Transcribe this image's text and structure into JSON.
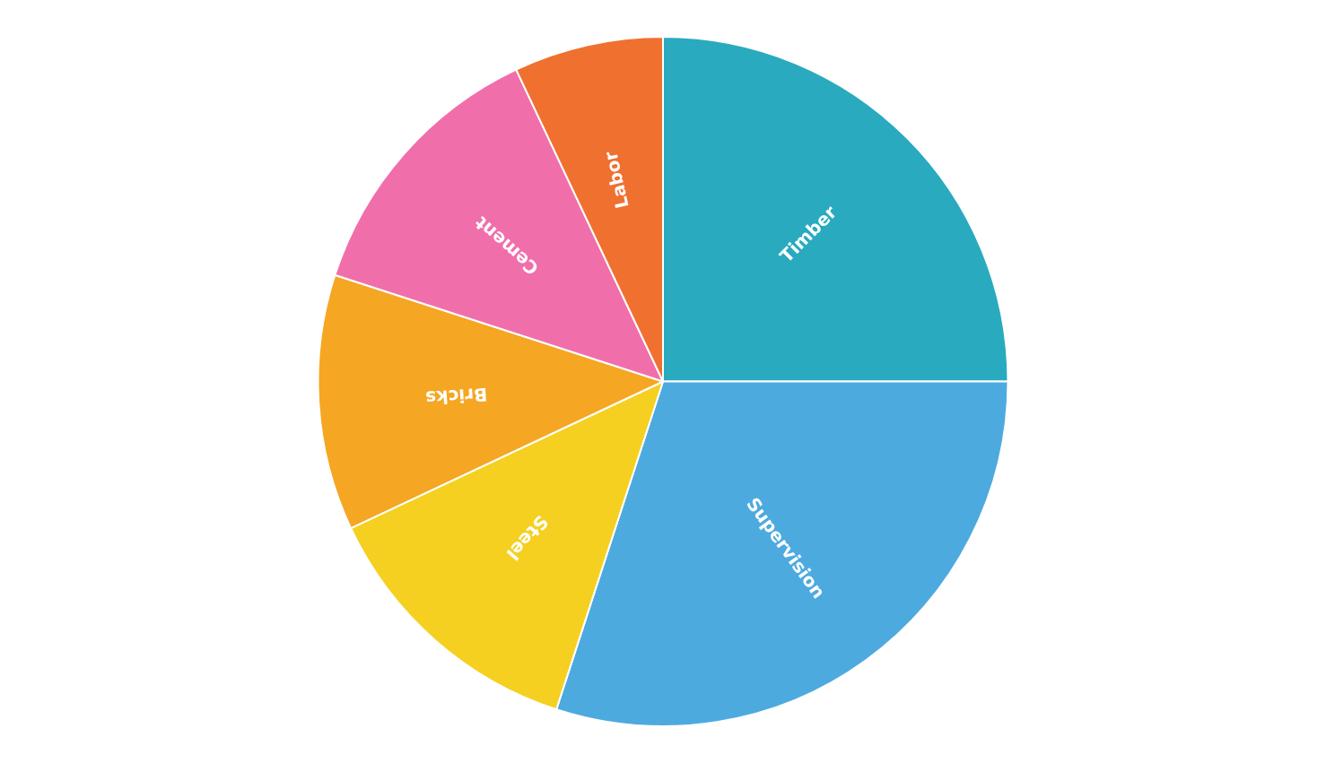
{
  "chart_data": {
    "type": "pie",
    "categories": [
      "Timber",
      "Supervision",
      "Steel",
      "Bricks",
      "Cement",
      "Labor"
    ],
    "values": [
      25,
      30,
      13,
      12,
      13,
      7
    ],
    "colors": [
      "#29AABF",
      "#4DAADF",
      "#F5D020",
      "#F5A623",
      "#F06FAB",
      "#F07030"
    ]
  }
}
